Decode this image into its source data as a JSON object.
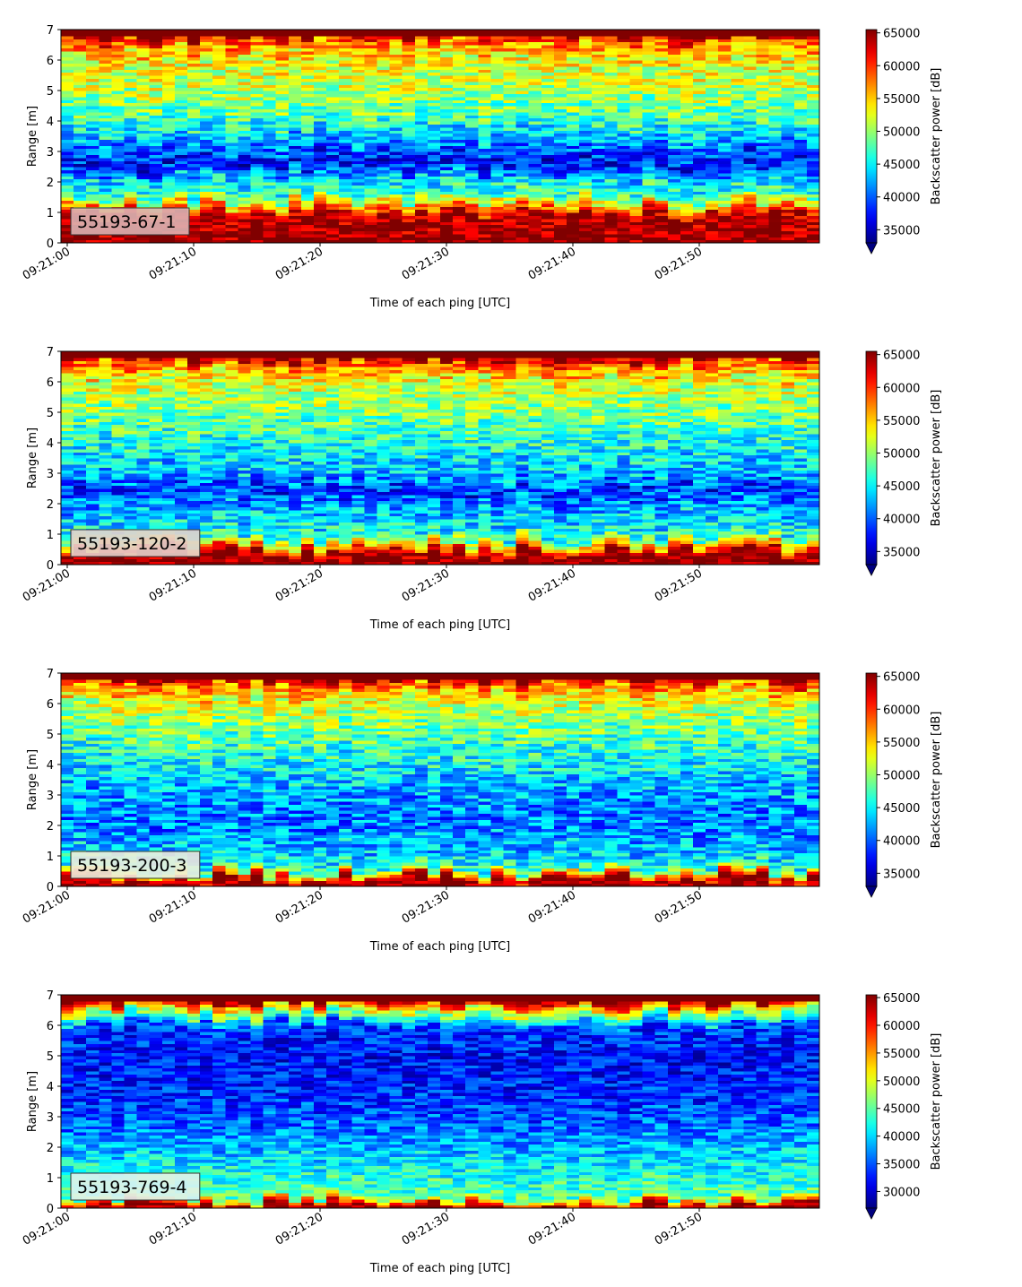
{
  "figure": {
    "xlabel": "Time of each ping [UTC]",
    "ylabel": "Range [m]",
    "colorbar_label": "Backscatter power [dB]",
    "colormap": "jet",
    "x_tick_labels": [
      "09:21:00",
      "09:21:10",
      "09:21:20",
      "09:21:30",
      "09:21:40",
      "09:21:50"
    ],
    "y_tick_labels": [
      "0",
      "1",
      "2",
      "3",
      "4",
      "5",
      "6",
      "7"
    ]
  },
  "chart_data": [
    {
      "type": "heatmap",
      "panel_label": "55193-67-1",
      "label_box_color": "#dcb2b2",
      "x_range_seconds": [
        0,
        59
      ],
      "ylim": [
        0,
        7
      ],
      "color_range": [
        33000,
        65500
      ],
      "colorbar_ticks": [
        35000,
        40000,
        45000,
        50000,
        55000,
        60000,
        65000
      ],
      "profile": [
        {
          "range": 0.1,
          "value": 65500
        },
        {
          "range": 0.3,
          "value": 65000
        },
        {
          "range": 0.9,
          "value": 64000
        },
        {
          "range": 1.2,
          "value": 56000
        },
        {
          "range": 1.6,
          "value": 47000
        },
        {
          "range": 2.0,
          "value": 45000
        },
        {
          "range": 2.6,
          "value": 37000
        },
        {
          "range": 3.2,
          "value": 41000
        },
        {
          "range": 4.0,
          "value": 47000
        },
        {
          "range": 5.0,
          "value": 51000
        },
        {
          "range": 6.0,
          "value": 53000
        },
        {
          "range": 6.6,
          "value": 58000
        },
        {
          "range": 6.9,
          "value": 65500
        }
      ]
    },
    {
      "type": "heatmap",
      "panel_label": "55193-120-2",
      "label_box_color": "#e6d2cc",
      "x_range_seconds": [
        0,
        59
      ],
      "ylim": [
        0,
        7
      ],
      "color_range": [
        33000,
        65500
      ],
      "colorbar_ticks": [
        35000,
        40000,
        45000,
        50000,
        55000,
        60000,
        65000
      ],
      "profile": [
        {
          "range": 0.2,
          "value": 65500
        },
        {
          "range": 0.45,
          "value": 64000
        },
        {
          "range": 0.65,
          "value": 55000
        },
        {
          "range": 1.0,
          "value": 46000
        },
        {
          "range": 2.0,
          "value": 42000
        },
        {
          "range": 2.5,
          "value": 38000
        },
        {
          "range": 3.0,
          "value": 43000
        },
        {
          "range": 4.0,
          "value": 46000
        },
        {
          "range": 5.0,
          "value": 49000
        },
        {
          "range": 6.0,
          "value": 52000
        },
        {
          "range": 6.6,
          "value": 58000
        },
        {
          "range": 6.9,
          "value": 65500
        }
      ]
    },
    {
      "type": "heatmap",
      "panel_label": "55193-200-3",
      "label_box_color": "#eeeedd",
      "x_range_seconds": [
        0,
        59
      ],
      "ylim": [
        0,
        7
      ],
      "color_range": [
        33000,
        65500
      ],
      "colorbar_ticks": [
        35000,
        40000,
        45000,
        50000,
        55000,
        60000,
        65000
      ],
      "profile": [
        {
          "range": 0.15,
          "value": 65500
        },
        {
          "range": 0.35,
          "value": 60000
        },
        {
          "range": 0.6,
          "value": 47000
        },
        {
          "range": 1.0,
          "value": 44000
        },
        {
          "range": 2.0,
          "value": 41000
        },
        {
          "range": 3.0,
          "value": 42000
        },
        {
          "range": 4.0,
          "value": 45000
        },
        {
          "range": 5.0,
          "value": 48000
        },
        {
          "range": 6.0,
          "value": 52000
        },
        {
          "range": 6.6,
          "value": 57000
        },
        {
          "range": 6.9,
          "value": 65500
        }
      ]
    },
    {
      "type": "heatmap",
      "panel_label": "55193-769-4",
      "label_box_color": "#dff2ee",
      "x_range_seconds": [
        0,
        59
      ],
      "ylim": [
        0,
        7
      ],
      "color_range": [
        27000,
        65500
      ],
      "colorbar_ticks": [
        30000,
        35000,
        40000,
        45000,
        50000,
        55000,
        60000,
        65000
      ],
      "profile": [
        {
          "range": 0.1,
          "value": 65500
        },
        {
          "range": 0.25,
          "value": 57000
        },
        {
          "range": 0.4,
          "value": 45000
        },
        {
          "range": 1.0,
          "value": 43000
        },
        {
          "range": 2.0,
          "value": 39000
        },
        {
          "range": 3.0,
          "value": 35000
        },
        {
          "range": 4.0,
          "value": 33000
        },
        {
          "range": 5.0,
          "value": 32000
        },
        {
          "range": 6.0,
          "value": 34000
        },
        {
          "range": 6.6,
          "value": 52000
        },
        {
          "range": 6.9,
          "value": 65500
        }
      ]
    }
  ]
}
